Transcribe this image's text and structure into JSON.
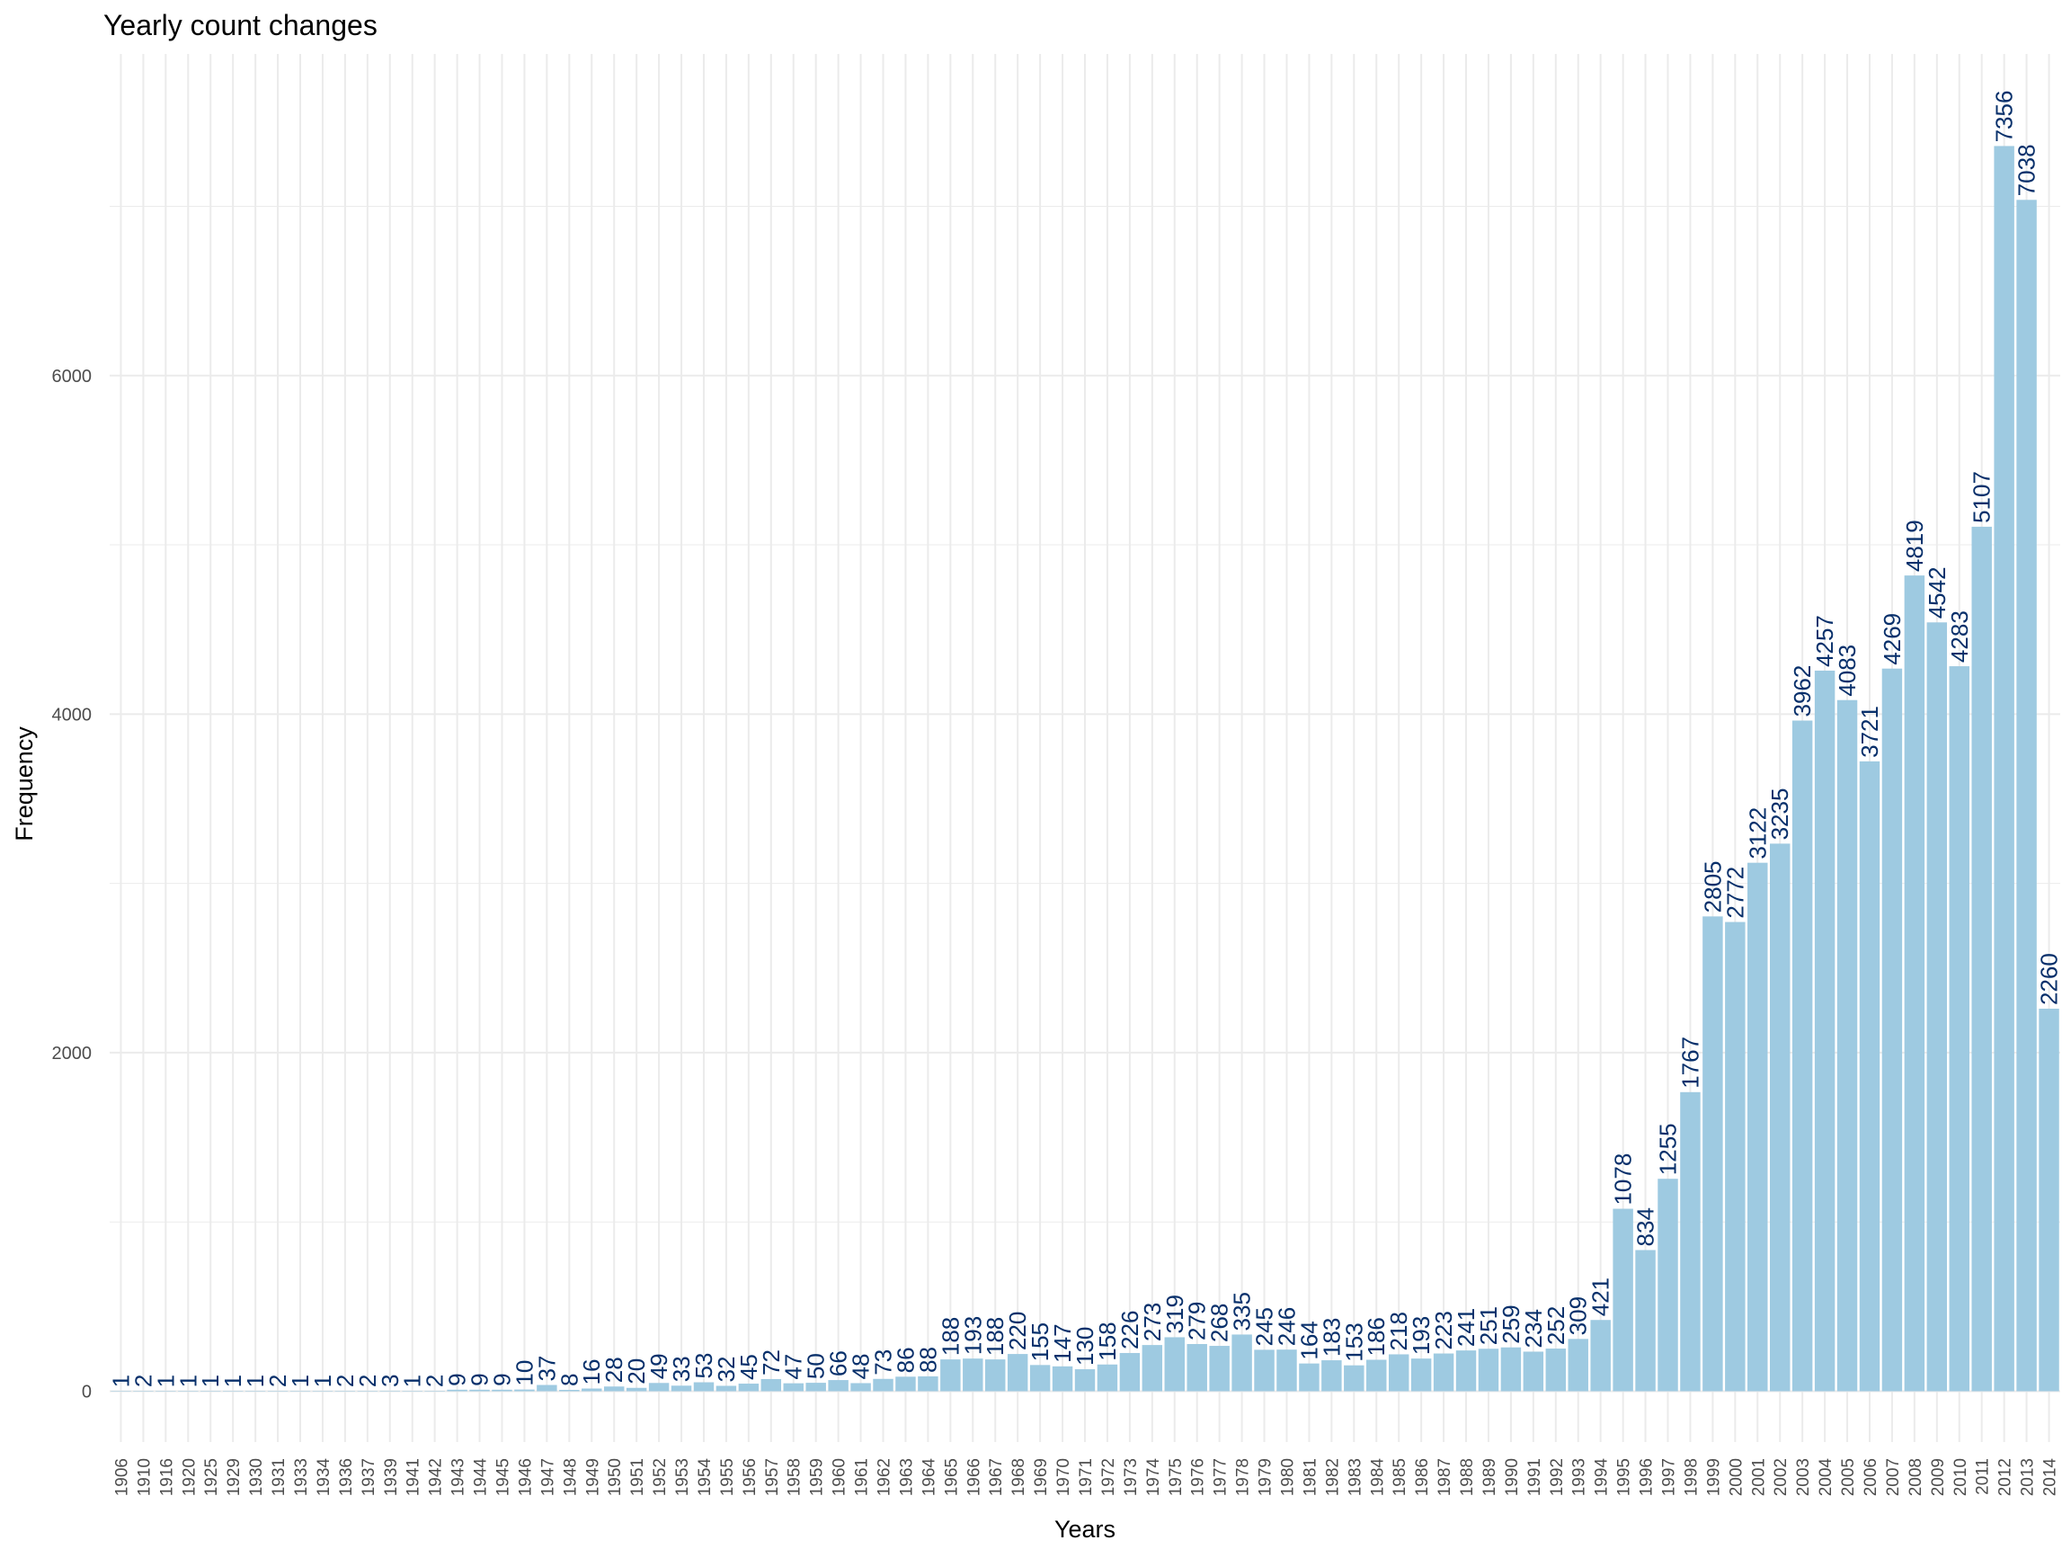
{
  "chart_data": {
    "type": "bar",
    "title": "Yearly count changes",
    "xlabel": "Years",
    "ylabel": "Frequency",
    "ylim": [
      -300,
      7900
    ],
    "yticks": [
      0,
      2000,
      4000,
      6000
    ],
    "grid": true,
    "legend": "none",
    "colors": {
      "bar": "#9ECAE1",
      "label": "#08306B",
      "grid": "#EBEBEB",
      "tick": "#4D4D4D"
    },
    "categories": [
      "1906",
      "1910",
      "1916",
      "1920",
      "1925",
      "1929",
      "1930",
      "1931",
      "1933",
      "1934",
      "1936",
      "1937",
      "1939",
      "1941",
      "1942",
      "1943",
      "1944",
      "1945",
      "1946",
      "1947",
      "1948",
      "1949",
      "1950",
      "1951",
      "1952",
      "1953",
      "1954",
      "1955",
      "1956",
      "1957",
      "1958",
      "1959",
      "1960",
      "1961",
      "1962",
      "1963",
      "1964",
      "1965",
      "1966",
      "1967",
      "1968",
      "1969",
      "1970",
      "1971",
      "1972",
      "1973",
      "1974",
      "1975",
      "1976",
      "1977",
      "1978",
      "1979",
      "1980",
      "1981",
      "1982",
      "1983",
      "1984",
      "1985",
      "1986",
      "1987",
      "1988",
      "1989",
      "1990",
      "1991",
      "1992",
      "1993",
      "1994",
      "1995",
      "1996",
      "1997",
      "1998",
      "1999",
      "2000",
      "2001",
      "2002",
      "2003",
      "2004",
      "2005",
      "2006",
      "2007",
      "2008",
      "2009",
      "2010",
      "2011",
      "2012",
      "2013",
      "2014"
    ],
    "values": [
      1,
      2,
      1,
      1,
      1,
      1,
      1,
      2,
      1,
      1,
      2,
      2,
      3,
      1,
      2,
      9,
      9,
      9,
      10,
      37,
      8,
      16,
      28,
      20,
      49,
      33,
      53,
      32,
      45,
      72,
      47,
      50,
      66,
      48,
      73,
      86,
      88,
      188,
      193,
      188,
      220,
      155,
      147,
      130,
      158,
      226,
      273,
      319,
      279,
      268,
      335,
      245,
      246,
      164,
      183,
      153,
      186,
      218,
      193,
      223,
      241,
      251,
      259,
      234,
      252,
      309,
      421,
      1078,
      834,
      1255,
      1767,
      2805,
      2772,
      3122,
      3235,
      3962,
      4257,
      4083,
      3721,
      4269,
      4819,
      4542,
      4283,
      5107,
      7356,
      7038,
      2260
    ]
  }
}
